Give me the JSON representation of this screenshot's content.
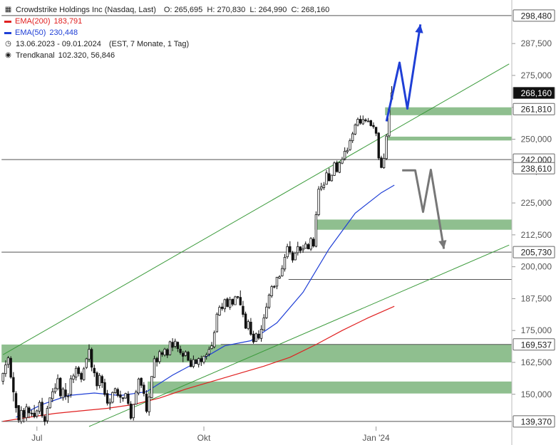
{
  "header": {
    "title": "Crowdstrike Holdings Inc (Nasdaq, Last)",
    "ohlc": "O: 265,695  H: 270,830  L: 264,990  C: 268,160",
    "ema200_label": "EMA(200)",
    "ema200_value": "183,791",
    "ema50_label": "EMA(50)",
    "ema50_value": "230,448",
    "period": "13.06.2023 - 09.01.2024",
    "period_detail": "(EST, 7 Monate, 1 Tag)",
    "trend_label": "Trendkanal",
    "trend_values": "102.320, 56,846"
  },
  "colors": {
    "ema200": "#e02020",
    "ema50": "#1f3fd6",
    "zone": "#8fbf8f",
    "channel": "#3a9a3a",
    "arrow_up": "#1f3fd6",
    "arrow_down": "#777777",
    "last_price_bg": "#111111"
  },
  "chart_data": {
    "type": "candlestick",
    "ylim": [
      137.37,
      301.5
    ],
    "x_labels": [
      {
        "label": "Jul",
        "index": 13
      },
      {
        "label": "Okt",
        "index": 77
      },
      {
        "label": "Jan '24",
        "index": 143
      }
    ],
    "y_ticks": [
      "150,000",
      "162,500",
      "175,000",
      "187,500",
      "200,000",
      "212,500",
      "225,000",
      "237,500",
      "250,000",
      "262,500",
      "275,000",
      "287,500"
    ],
    "y_tick_values": [
      150,
      162.5,
      175,
      187.5,
      200,
      212.5,
      225,
      237.5,
      250,
      262.5,
      275,
      287.5
    ],
    "level_tags": [
      {
        "label": "298,480",
        "value": 298.48,
        "style": "box"
      },
      {
        "label": "268,160",
        "value": 268.16,
        "style": "last"
      },
      {
        "label": "261,810",
        "value": 261.81,
        "style": "box"
      },
      {
        "label": "242,000",
        "value": 242.0,
        "style": "box"
      },
      {
        "label": "238,610",
        "value": 238.61,
        "style": "box"
      },
      {
        "label": "205,730",
        "value": 205.73,
        "style": "box"
      },
      {
        "label": "169,537",
        "value": 169.537,
        "style": "box"
      },
      {
        "label": "139,370",
        "value": 139.37,
        "style": "box"
      }
    ],
    "zones": [
      {
        "from_index": 0,
        "lo": 162.5,
        "hi": 169.5
      },
      {
        "from_index": 56,
        "lo": 150.3,
        "hi": 155.0
      },
      {
        "from_index": 120,
        "lo": 214.5,
        "hi": 218.5
      },
      {
        "from_index": 147,
        "lo": 259.4,
        "hi": 262.5
      },
      {
        "from_index": 147,
        "lo": 249.5,
        "hi": 251.0
      }
    ],
    "support_lines": [
      {
        "value": 298.48,
        "from_index": 0
      },
      {
        "value": 242.0,
        "from_index": 0
      },
      {
        "value": 205.73,
        "from_index": 0
      },
      {
        "value": 195.0,
        "from_index": 110
      },
      {
        "value": 169.537,
        "from_index": 84
      },
      {
        "value": 139.37,
        "from_index": 0
      }
    ],
    "channel_lines": [
      {
        "i1": 0,
        "v1": 165.5,
        "i2": 194,
        "v2": 279.5
      },
      {
        "i1": 33,
        "v1": 137.37,
        "i2": 194,
        "v2": 208.5
      }
    ],
    "arrow_up": [
      [
        147,
        257
      ],
      [
        152,
        280
      ],
      [
        155,
        262
      ],
      [
        160,
        295
      ]
    ],
    "arrow_down": [
      [
        153,
        237.8
      ],
      [
        158,
        237.8
      ],
      [
        161,
        221.5
      ],
      [
        164,
        238
      ],
      [
        169,
        207
      ]
    ],
    "ema200": [
      [
        0,
        139.4
      ],
      [
        10,
        141
      ],
      [
        20,
        142.5
      ],
      [
        30,
        143.5
      ],
      [
        40,
        144.5
      ],
      [
        50,
        146
      ],
      [
        60,
        148.5
      ],
      [
        70,
        152
      ],
      [
        80,
        155
      ],
      [
        90,
        158
      ],
      [
        100,
        161
      ],
      [
        110,
        164.5
      ],
      [
        120,
        169.5
      ],
      [
        130,
        175
      ],
      [
        140,
        180
      ],
      [
        150,
        184.5
      ]
    ],
    "ema50": [
      [
        5,
        141
      ],
      [
        15,
        146
      ],
      [
        25,
        149.5
      ],
      [
        35,
        150.5
      ],
      [
        45,
        149.5
      ],
      [
        55,
        151
      ],
      [
        65,
        157.5
      ],
      [
        75,
        163
      ],
      [
        85,
        169
      ],
      [
        95,
        171
      ],
      [
        105,
        178
      ],
      [
        115,
        190
      ],
      [
        125,
        207
      ],
      [
        135,
        221
      ],
      [
        145,
        229
      ],
      [
        150,
        232
      ]
    ],
    "candles": [
      [
        0,
        155.1,
        158.2,
        153.8,
        158.5
      ],
      [
        1,
        158.1,
        161.5,
        156.8,
        163.3
      ],
      [
        2,
        161.7,
        164.3,
        160.3,
        165.0
      ],
      [
        3,
        164.1,
        156.7,
        156.1,
        164.9
      ],
      [
        4,
        156.6,
        150.9,
        147.2,
        158.7
      ],
      [
        5,
        150.3,
        144.7,
        142.8,
        151.2
      ],
      [
        6,
        145.6,
        139.9,
        138.8,
        145.7
      ],
      [
        7,
        139.3,
        143.7,
        138.4,
        145.3
      ],
      [
        8,
        143.7,
        141.0,
        138.9,
        144.6
      ],
      [
        9,
        140.8,
        145.1,
        139.6,
        146.3
      ],
      [
        10,
        144.7,
        142.7,
        140.6,
        145.4
      ],
      [
        11,
        142.6,
        142.4,
        141.3,
        143.9
      ],
      [
        12,
        142.6,
        141.2,
        140.6,
        145.8
      ],
      [
        13,
        141.4,
        143.5,
        140.6,
        144.0
      ],
      [
        14,
        143.4,
        146.8,
        142.3,
        147.6
      ],
      [
        15,
        146.9,
        141.5,
        140.7,
        148.6
      ],
      [
        16,
        141.3,
        139.3,
        137.8,
        142.0
      ],
      [
        17,
        139.6,
        144.5,
        138.5,
        145.5
      ],
      [
        18,
        144.7,
        148.6,
        144.3,
        148.6
      ],
      [
        19,
        148.3,
        151.0,
        146.9,
        152.4
      ],
      [
        20,
        151.0,
        152.4,
        150.2,
        154.3
      ],
      [
        21,
        152.2,
        156.1,
        151.5,
        157.8
      ],
      [
        22,
        156.3,
        149.4,
        148.4,
        156.7
      ],
      [
        23,
        148.6,
        152.1,
        147.5,
        152.8
      ],
      [
        24,
        151.7,
        149.2,
        147.8,
        154.4
      ],
      [
        25,
        149.3,
        149.3,
        146.6,
        150.4
      ],
      [
        26,
        149.9,
        156.1,
        148.7,
        157.5
      ],
      [
        27,
        155.9,
        157.2,
        154.4,
        158.1
      ],
      [
        28,
        156.7,
        160.2,
        155.4,
        161.1
      ],
      [
        29,
        160.4,
        158.1,
        157.0,
        161.1
      ],
      [
        30,
        158.2,
        155.9,
        154.7,
        158.9
      ],
      [
        31,
        155.7,
        160.0,
        155.3,
        160.7
      ],
      [
        32,
        160.5,
        163.9,
        159.9,
        164.3
      ],
      [
        33,
        163.8,
        167.6,
        162.8,
        169.6
      ],
      [
        34,
        167.6,
        160.6,
        159.0,
        168.3
      ],
      [
        35,
        160.2,
        158.4,
        156.8,
        161.6
      ],
      [
        36,
        158.4,
        153.3,
        151.7,
        159.0
      ],
      [
        37,
        153.4,
        157.4,
        152.3,
        158.3
      ],
      [
        38,
        157.0,
        154.5,
        152.5,
        157.7
      ],
      [
        39,
        154.6,
        149.9,
        149.1,
        156.1
      ],
      [
        40,
        150.3,
        146.5,
        145.6,
        151.7
      ],
      [
        41,
        146.3,
        146.8,
        143.8,
        148.4
      ],
      [
        42,
        146.9,
        150.7,
        146.4,
        151.1
      ],
      [
        43,
        150.6,
        152.2,
        150.2,
        152.6
      ],
      [
        44,
        151.9,
        149.5,
        148.8,
        152.6
      ],
      [
        45,
        149.8,
        148.8,
        146.6,
        151.4
      ],
      [
        46,
        148.6,
        148.3,
        147.1,
        148.9
      ],
      [
        47,
        148.5,
        150.3,
        148.3,
        150.6
      ],
      [
        48,
        150.1,
        146.4,
        145.7,
        151.2
      ],
      [
        49,
        146.2,
        140.6,
        140.0,
        147.3
      ],
      [
        50,
        140.8,
        146.0,
        139.7,
        146.2
      ],
      [
        51,
        146.1,
        150.9,
        145.9,
        151.7
      ],
      [
        52,
        150.5,
        156.0,
        149.6,
        156.5
      ],
      [
        53,
        156.3,
        153.5,
        152.5,
        156.6
      ],
      [
        54,
        153.6,
        150.3,
        149.2,
        154.8
      ],
      [
        55,
        150.1,
        143.3,
        142.6,
        151.6
      ],
      [
        56,
        143.1,
        148.9,
        141.6,
        150.4
      ],
      [
        57,
        148.7,
        157.0,
        148.4,
        157.0
      ],
      [
        58,
        156.6,
        163.9,
        156.4,
        165.1
      ],
      [
        59,
        164.1,
        162.7,
        160.9,
        164.7
      ],
      [
        60,
        162.8,
        166.7,
        161.9,
        167.4
      ],
      [
        61,
        166.3,
        165.6,
        164.7,
        167.1
      ],
      [
        62,
        165.4,
        167.7,
        164.8,
        168.2
      ],
      [
        63,
        167.5,
        165.3,
        164.2,
        168.1
      ],
      [
        64,
        165.5,
        170.6,
        165.2,
        171.0
      ],
      [
        65,
        170.4,
        168.4,
        166.9,
        172.0
      ],
      [
        66,
        168.8,
        170.8,
        168.0,
        171.8
      ],
      [
        67,
        170.4,
        167.9,
        166.6,
        170.7
      ],
      [
        68,
        167.7,
        166.3,
        165.5,
        169.0
      ],
      [
        69,
        166.1,
        164.9,
        162.6,
        167.0
      ],
      [
        70,
        165.2,
        166.6,
        164.8,
        167.2
      ],
      [
        71,
        166.5,
        163.3,
        163.1,
        167.0
      ],
      [
        72,
        163.3,
        160.8,
        160.8,
        164.1
      ],
      [
        73,
        160.9,
        163.6,
        160.2,
        165.2
      ],
      [
        74,
        163.5,
        162.0,
        161.9,
        163.9
      ],
      [
        75,
        161.7,
        164.0,
        160.5,
        164.4
      ],
      [
        76,
        164.0,
        162.8,
        161.1,
        165.1
      ],
      [
        77,
        162.6,
        164.9,
        161.8,
        165.2
      ],
      [
        78,
        164.9,
        165.5,
        163.6,
        166.3
      ],
      [
        79,
        165.8,
        167.6,
        164.9,
        168.7
      ],
      [
        80,
        167.9,
        169.0,
        167.6,
        170.5
      ],
      [
        81,
        168.6,
        174.2,
        168.0,
        175.0
      ],
      [
        82,
        174.5,
        181.4,
        174.2,
        182.1
      ],
      [
        83,
        181.0,
        184.1,
        180.7,
        184.9
      ],
      [
        84,
        184.2,
        183.6,
        182.8,
        185.8
      ],
      [
        85,
        183.5,
        187.1,
        182.2,
        187.5
      ],
      [
        86,
        187.4,
        184.4,
        184.1,
        188.0
      ],
      [
        87,
        184.1,
        187.1,
        183.1,
        188.2
      ],
      [
        88,
        187.3,
        185.3,
        184.5,
        187.4
      ],
      [
        89,
        185.1,
        188.2,
        185.1,
        188.6
      ],
      [
        90,
        188.3,
        188.1,
        187.3,
        188.5
      ],
      [
        91,
        188.0,
        185.0,
        184.8,
        190.7
      ],
      [
        92,
        184.5,
        181.3,
        180.2,
        186.6
      ],
      [
        93,
        181.5,
        175.9,
        175.6,
        182.4
      ],
      [
        94,
        175.8,
        178.5,
        175.1,
        179.3
      ],
      [
        95,
        178.3,
        173.5,
        172.9,
        179.9
      ],
      [
        96,
        173.6,
        170.5,
        169.8,
        174.9
      ],
      [
        97,
        170.7,
        173.7,
        170.5,
        174.2
      ],
      [
        98,
        173.6,
        172.0,
        171.3,
        175.1
      ],
      [
        99,
        171.9,
        175.5,
        170.6,
        177.1
      ],
      [
        100,
        175.2,
        179.9,
        174.9,
        181.4
      ],
      [
        101,
        180.0,
        184.2,
        179.5,
        185.8
      ],
      [
        102,
        184.1,
        188.9,
        183.4,
        189.5
      ],
      [
        103,
        188.6,
        192.2,
        187.8,
        192.8
      ],
      [
        104,
        192.3,
        192.0,
        191.5,
        192.8
      ],
      [
        105,
        192.4,
        195.9,
        191.2,
        196.0
      ],
      [
        106,
        195.5,
        196.1,
        195.2,
        196.7
      ],
      [
        107,
        196.4,
        199.3,
        196.1,
        200.6
      ],
      [
        108,
        199.1,
        203.7,
        198.1,
        205.0
      ],
      [
        109,
        203.9,
        207.9,
        203.1,
        209.0
      ],
      [
        110,
        207.9,
        205.8,
        204.8,
        210.0
      ],
      [
        111,
        205.4,
        202.6,
        201.6,
        206.2
      ],
      [
        112,
        202.7,
        205.3,
        202.5,
        205.4
      ],
      [
        113,
        205.5,
        207.9,
        204.4,
        209.8
      ],
      [
        114,
        207.8,
        206.3,
        205.3,
        208.0
      ],
      [
        115,
        206.6,
        207.1,
        205.5,
        208.6
      ],
      [
        116,
        207.2,
        208.9,
        207.1,
        209.9
      ],
      [
        117,
        208.7,
        207.0,
        206.8,
        209.3
      ],
      [
        118,
        206.9,
        211.1,
        206.2,
        211.6
      ],
      [
        119,
        210.8,
        208.1,
        207.5,
        211.6
      ],
      [
        120,
        208.0,
        220.4,
        207.6,
        221.7
      ],
      [
        121,
        220.4,
        230.4,
        219.8,
        231.6
      ],
      [
        122,
        230.5,
        231.3,
        229.7,
        232.9
      ],
      [
        123,
        231.0,
        232.0,
        230.1,
        233.2
      ],
      [
        124,
        232.3,
        236.8,
        232.2,
        237.9
      ],
      [
        125,
        236.5,
        233.7,
        233.5,
        238.7
      ],
      [
        126,
        233.7,
        235.9,
        233.4,
        236.0
      ],
      [
        127,
        235.8,
        240.7,
        235.6,
        241.3
      ],
      [
        128,
        240.8,
        237.3,
        236.9,
        241.6
      ],
      [
        129,
        237.0,
        240.8,
        236.7,
        241.2
      ],
      [
        130,
        240.6,
        242.1,
        240.2,
        243.1
      ],
      [
        131,
        242.3,
        245.3,
        241.6,
        246.8
      ],
      [
        132,
        245.1,
        245.6,
        244.3,
        246.7
      ],
      [
        133,
        245.9,
        249.4,
        245.4,
        250.3
      ],
      [
        134,
        249.4,
        252.1,
        248.5,
        252.9
      ],
      [
        135,
        252.0,
        255.6,
        251.6,
        256.2
      ],
      [
        136,
        255.5,
        257.8,
        255.0,
        258.5
      ],
      [
        137,
        257.8,
        256.3,
        255.7,
        259.3
      ],
      [
        138,
        256.0,
        257.7,
        255.6,
        259.3
      ],
      [
        139,
        257.6,
        257.2,
        256.6,
        258.2
      ],
      [
        140,
        257.0,
        257.1,
        256.8,
        258.3
      ],
      [
        141,
        257.3,
        255.3,
        255.0,
        257.6
      ],
      [
        142,
        255.4,
        254.9,
        254.1,
        256.6
      ],
      [
        143,
        254.7,
        252.3,
        251.2,
        254.8
      ],
      [
        144,
        252.4,
        242.6,
        241.8,
        252.8
      ],
      [
        145,
        242.7,
        238.9,
        238.6,
        243.5
      ],
      [
        146,
        238.8,
        242.5,
        238.4,
        244.4
      ],
      [
        147,
        242.4,
        251.2,
        241.8,
        252.1
      ],
      [
        148,
        251.3,
        261.8,
        250.7,
        262.3
      ],
      [
        149,
        265.7,
        268.2,
        265.0,
        270.8
      ]
    ]
  }
}
